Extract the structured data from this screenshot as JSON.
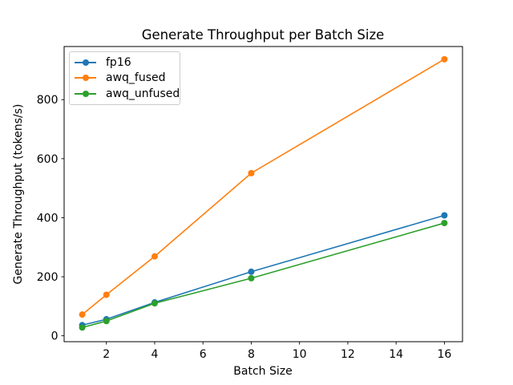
{
  "chart_data": {
    "type": "line",
    "title": "Generate Throughput per Batch Size",
    "xlabel": "Batch Size",
    "ylabel": "Generate Throughput (tokens/s)",
    "x": [
      1,
      2,
      4,
      8,
      16
    ],
    "series": [
      {
        "name": "fp16",
        "color": "#1f77b4",
        "values": [
          36,
          56,
          113,
          217,
          408
        ]
      },
      {
        "name": "awq_fused",
        "color": "#ff7f0e",
        "values": [
          72,
          139,
          269,
          551,
          937
        ]
      },
      {
        "name": "awq_unfused",
        "color": "#2ca02c",
        "values": [
          28,
          50,
          110,
          195,
          382
        ]
      }
    ],
    "xticks": [
      2,
      4,
      6,
      8,
      10,
      12,
      14,
      16
    ],
    "yticks": [
      0,
      200,
      400,
      600,
      800
    ],
    "xlim": [
      0.25,
      16.75
    ],
    "ylim": [
      -20,
      980
    ],
    "legend_position": "upper left",
    "grid": false,
    "marker": "o",
    "line_width": 1.6,
    "marker_radius": 4,
    "axis_color": "#000000",
    "legend_border_color": "#cccccc"
  }
}
